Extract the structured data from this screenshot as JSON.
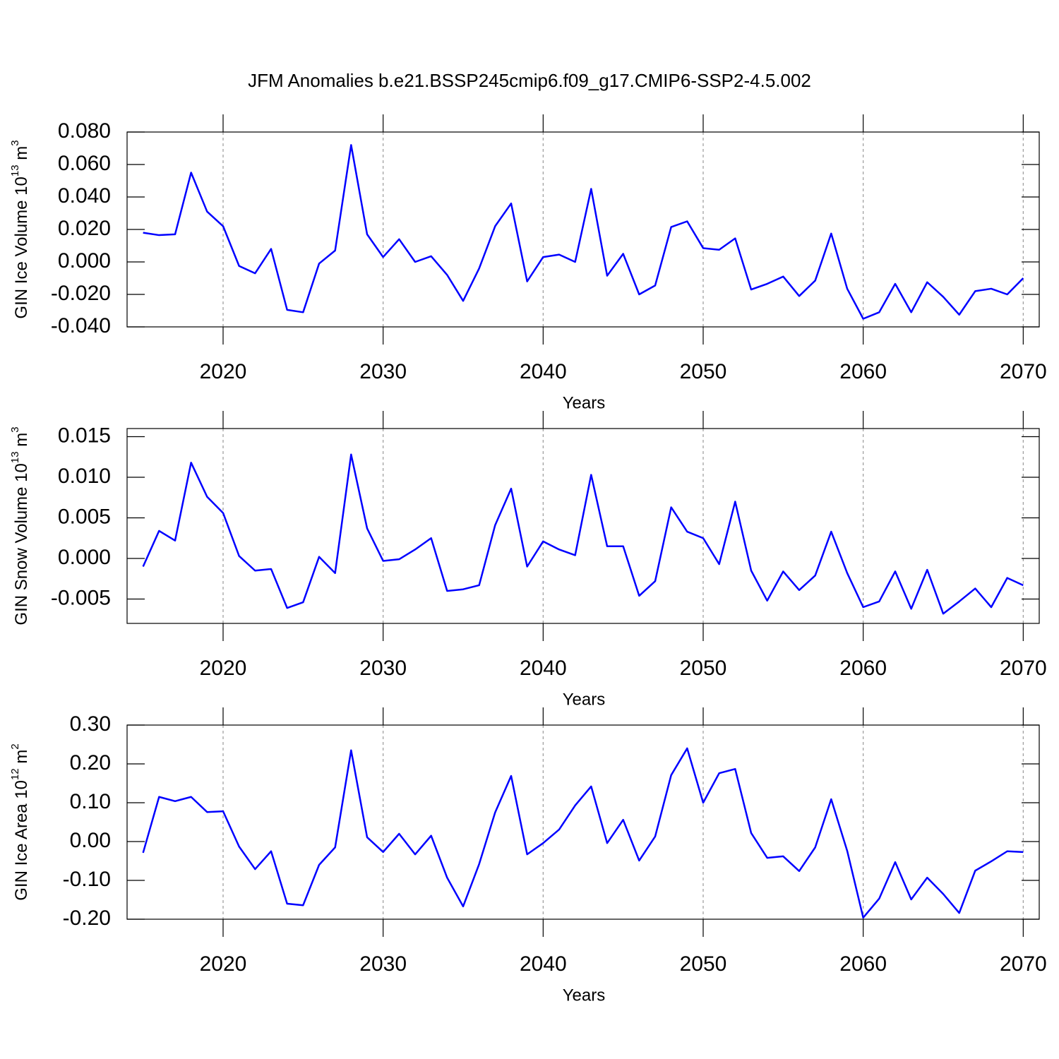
{
  "title": "JFM Anomalies b.e21.BSSP245cmip6.f09_g17.CMIP6-SSP2-4.5.002",
  "chart_data": [
    {
      "type": "line",
      "ylabel": [
        "GIN Ice Volume 10",
        "13",
        " m",
        "3"
      ],
      "xlabel": "Years",
      "color": "#0000ff",
      "grid": "x",
      "x": [
        2015,
        2016,
        2017,
        2018,
        2019,
        2020,
        2021,
        2022,
        2023,
        2024,
        2025,
        2026,
        2027,
        2028,
        2029,
        2030,
        2031,
        2032,
        2033,
        2034,
        2035,
        2036,
        2037,
        2038,
        2039,
        2040,
        2041,
        2042,
        2043,
        2044,
        2045,
        2046,
        2047,
        2048,
        2049,
        2050,
        2051,
        2052,
        2053,
        2054,
        2055,
        2056,
        2057,
        2058,
        2059,
        2060,
        2061,
        2062,
        2063,
        2064,
        2065,
        2066,
        2067,
        2068,
        2069,
        2070
      ],
      "values": [
        0.018,
        0.0165,
        0.017,
        0.055,
        0.031,
        0.022,
        -0.0025,
        -0.007,
        0.008,
        -0.0295,
        -0.031,
        -0.001,
        0.007,
        0.072,
        0.017,
        0.003,
        0.014,
        0.0,
        0.0035,
        -0.008,
        -0.024,
        -0.004,
        0.022,
        0.036,
        -0.012,
        0.003,
        0.0045,
        0.0,
        0.045,
        -0.0085,
        0.005,
        -0.02,
        -0.0145,
        0.0215,
        0.025,
        0.0085,
        0.0075,
        0.0145,
        -0.017,
        -0.0135,
        -0.009,
        -0.021,
        -0.0115,
        0.0175,
        -0.0165,
        -0.035,
        -0.031,
        -0.0135,
        -0.031,
        -0.0125,
        -0.0215,
        -0.0325,
        -0.018,
        -0.0165,
        -0.02,
        -0.01
      ],
      "xlim": [
        2014,
        2071
      ],
      "xticks": [
        2020,
        2030,
        2040,
        2050,
        2060,
        2070
      ],
      "ylim": [
        -0.04,
        0.08
      ],
      "yticks": [
        {
          "value": 0.08,
          "label": "0.080"
        },
        {
          "value": 0.06,
          "label": "0.060"
        },
        {
          "value": 0.04,
          "label": "0.040"
        },
        {
          "value": 0.02,
          "label": "0.020"
        },
        {
          "value": 0,
          "label": "0.000"
        },
        {
          "value": -0.02,
          "label": "-0.020"
        },
        {
          "value": -0.04,
          "label": "-0.040"
        }
      ]
    },
    {
      "type": "line",
      "ylabel": [
        "GIN Snow Volume 10",
        "13",
        " m",
        "3"
      ],
      "xlabel": "Years",
      "color": "#0000ff",
      "grid": "x",
      "x": [
        2015,
        2016,
        2017,
        2018,
        2019,
        2020,
        2021,
        2022,
        2023,
        2024,
        2025,
        2026,
        2027,
        2028,
        2029,
        2030,
        2031,
        2032,
        2033,
        2034,
        2035,
        2036,
        2037,
        2038,
        2039,
        2040,
        2041,
        2042,
        2043,
        2044,
        2045,
        2046,
        2047,
        2048,
        2049,
        2050,
        2051,
        2052,
        2053,
        2054,
        2055,
        2056,
        2057,
        2058,
        2059,
        2060,
        2061,
        2062,
        2063,
        2064,
        2065,
        2066,
        2067,
        2068,
        2069,
        2070
      ],
      "values": [
        -0.001,
        0.0034,
        0.0022,
        0.0118,
        0.0076,
        0.0056,
        0.0003,
        -0.0015,
        -0.0013,
        -0.0061,
        -0.0054,
        0.0002,
        -0.0018,
        0.0128,
        0.0037,
        -0.0003,
        -0.0001,
        0.0011,
        0.0025,
        -0.004,
        -0.0038,
        -0.0033,
        0.0041,
        0.0086,
        -0.001,
        0.0021,
        0.0011,
        0.0004,
        0.0103,
        0.0015,
        0.0015,
        -0.0046,
        -0.0028,
        0.0063,
        0.0033,
        0.0025,
        -0.0007,
        0.007,
        -0.0015,
        -0.0052,
        -0.0016,
        -0.0039,
        -0.0021,
        0.0033,
        -0.0018,
        -0.006,
        -0.0053,
        -0.0016,
        -0.0062,
        -0.0014,
        -0.0068,
        -0.0053,
        -0.0037,
        -0.006,
        -0.0024,
        -0.0033
      ],
      "xlim": [
        2014,
        2071
      ],
      "xticks": [
        2020,
        2030,
        2040,
        2050,
        2060,
        2070
      ],
      "ylim": [
        -0.008,
        0.016
      ],
      "yticks": [
        {
          "value": 0.015,
          "label": "0.015"
        },
        {
          "value": 0.01,
          "label": "0.010"
        },
        {
          "value": 0.005,
          "label": "0.005"
        },
        {
          "value": 0,
          "label": "0.000"
        },
        {
          "value": -0.005,
          "label": "-0.005"
        }
      ]
    },
    {
      "type": "line",
      "ylabel": [
        "GIN Ice Area 10",
        "12",
        " m",
        "2"
      ],
      "xlabel": "Years",
      "color": "#0000ff",
      "grid": "x",
      "x": [
        2015,
        2016,
        2017,
        2018,
        2019,
        2020,
        2021,
        2022,
        2023,
        2024,
        2025,
        2026,
        2027,
        2028,
        2029,
        2030,
        2031,
        2032,
        2033,
        2034,
        2035,
        2036,
        2037,
        2038,
        2039,
        2040,
        2041,
        2042,
        2043,
        2044,
        2045,
        2046,
        2047,
        2048,
        2049,
        2050,
        2051,
        2052,
        2053,
        2054,
        2055,
        2056,
        2057,
        2058,
        2059,
        2060,
        2061,
        2062,
        2063,
        2064,
        2065,
        2066,
        2067,
        2068,
        2069,
        2070
      ],
      "values": [
        -0.029,
        0.115,
        0.104,
        0.115,
        0.076,
        0.078,
        -0.013,
        -0.071,
        -0.025,
        -0.16,
        -0.164,
        -0.06,
        -0.015,
        0.235,
        0.011,
        -0.027,
        0.02,
        -0.033,
        0.015,
        -0.093,
        -0.167,
        -0.058,
        0.075,
        0.169,
        -0.033,
        -0.004,
        0.031,
        0.093,
        0.142,
        -0.004,
        0.056,
        -0.049,
        0.013,
        0.171,
        0.24,
        0.1,
        0.176,
        0.187,
        0.022,
        -0.042,
        -0.038,
        -0.076,
        -0.015,
        0.109,
        -0.024,
        -0.196,
        -0.147,
        -0.053,
        -0.149,
        -0.093,
        -0.135,
        -0.184,
        -0.075,
        -0.051,
        -0.025,
        -0.027
      ],
      "xlim": [
        2014,
        2071
      ],
      "xticks": [
        2020,
        2030,
        2040,
        2050,
        2060,
        2070
      ],
      "ylim": [
        -0.2,
        0.3
      ],
      "yticks": [
        {
          "value": 0.3,
          "label": "0.30"
        },
        {
          "value": 0.2,
          "label": "0.20"
        },
        {
          "value": 0.1,
          "label": "0.10"
        },
        {
          "value": 0,
          "label": "0.00"
        },
        {
          "value": -0.1,
          "label": "-0.10"
        },
        {
          "value": -0.2,
          "label": "-0.20"
        }
      ]
    }
  ]
}
